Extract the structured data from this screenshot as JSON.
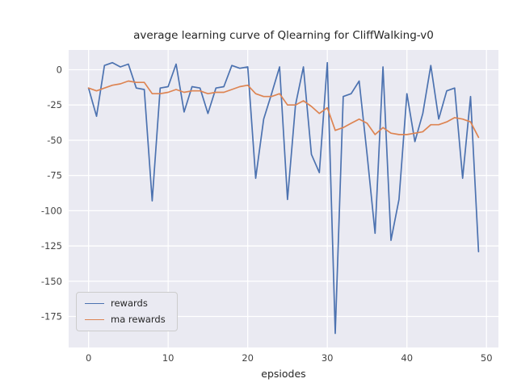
{
  "chart_data": {
    "type": "line",
    "title": "average learning curve of Qlearning for CliffWalking-v0",
    "xlabel": "epsiodes",
    "ylabel": "",
    "x": [
      0,
      1,
      2,
      3,
      4,
      5,
      6,
      7,
      8,
      9,
      10,
      11,
      12,
      13,
      14,
      15,
      16,
      17,
      18,
      19,
      20,
      21,
      22,
      23,
      24,
      25,
      26,
      27,
      28,
      29,
      30,
      31,
      32,
      33,
      34,
      35,
      36,
      37,
      38,
      39,
      40,
      41,
      42,
      43,
      44,
      45,
      46,
      47,
      48,
      49
    ],
    "series": [
      {
        "name": "rewards",
        "color": "#4c72b0",
        "values": [
          -13,
          -33,
          3,
          5,
          2,
          4,
          -13,
          -14,
          -93,
          -13,
          -12,
          4,
          -30,
          -12,
          -13,
          -31,
          -13,
          -12,
          3,
          1,
          2,
          -77,
          -35,
          -17,
          2,
          -92,
          -25,
          2,
          -60,
          -73,
          5,
          -187,
          -19,
          -17,
          -8,
          -60,
          -116,
          2,
          -121,
          -92,
          -17,
          -51,
          -31,
          3,
          -35,
          -15,
          -13,
          -77,
          -19,
          -129
        ]
      },
      {
        "name": "ma rewards",
        "color": "#dd8452",
        "values": [
          -13,
          -15,
          -13,
          -11,
          -10,
          -8,
          -9,
          -9,
          -17,
          -17,
          -16,
          -14,
          -16,
          -15,
          -15,
          -17,
          -16,
          -16,
          -14,
          -12,
          -11,
          -17,
          -19,
          -19,
          -17,
          -25,
          -25,
          -22,
          -26,
          -31,
          -27,
          -43,
          -41,
          -38,
          -35,
          -38,
          -46,
          -41,
          -45,
          -46,
          -46,
          -45,
          -44,
          -39,
          -39,
          -37,
          -34,
          -35,
          -37,
          -48
        ]
      }
    ],
    "xticks": [
      0,
      10,
      20,
      30,
      40,
      50
    ],
    "yticks": [
      0,
      -25,
      -50,
      -75,
      -100,
      -125,
      -150,
      -175
    ],
    "xlim": [
      -2.5,
      51.5
    ],
    "ylim": [
      -197,
      14
    ],
    "grid": true,
    "legend_position": "lower left",
    "plot_bg": "#eaeaf2",
    "grid_color": "#ffffff",
    "tick_color": "#444444"
  }
}
